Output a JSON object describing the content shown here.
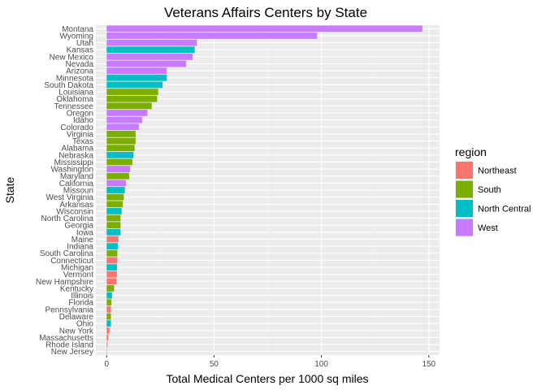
{
  "chart_data": {
    "type": "bar",
    "orientation": "horizontal",
    "title": "Veterans Affairs Centers by State",
    "xlabel": "Total Medical Centers per 1000 sq miles",
    "ylabel": "State",
    "xlim": [
      -5,
      155
    ],
    "xticks": [
      0,
      50,
      100,
      150
    ],
    "grid": true,
    "legend": {
      "title": "region",
      "position": "right",
      "entries": [
        {
          "name": "Northeast",
          "color": "#F8766D"
        },
        {
          "name": "South",
          "color": "#7CAE00"
        },
        {
          "name": "North Central",
          "color": "#00BFC4"
        },
        {
          "name": "West",
          "color": "#C77CFF"
        }
      ]
    },
    "bars": [
      {
        "state": "Montana",
        "value": 147,
        "region": "West"
      },
      {
        "state": "Wyoming",
        "value": 98,
        "region": "West"
      },
      {
        "state": "Utah",
        "value": 42,
        "region": "West"
      },
      {
        "state": "Kansas",
        "value": 41,
        "region": "North Central"
      },
      {
        "state": "New Mexico",
        "value": 40,
        "region": "West"
      },
      {
        "state": "Nevada",
        "value": 37,
        "region": "West"
      },
      {
        "state": "Arizona",
        "value": 28,
        "region": "West"
      },
      {
        "state": "Minnesota",
        "value": 28,
        "region": "North Central"
      },
      {
        "state": "South Dakota",
        "value": 26,
        "region": "North Central"
      },
      {
        "state": "Louisiana",
        "value": 24,
        "region": "South"
      },
      {
        "state": "Oklahoma",
        "value": 23.5,
        "region": "South"
      },
      {
        "state": "Tennessee",
        "value": 21,
        "region": "South"
      },
      {
        "state": "Oregon",
        "value": 19,
        "region": "West"
      },
      {
        "state": "Idaho",
        "value": 16.5,
        "region": "West"
      },
      {
        "state": "Colorado",
        "value": 15,
        "region": "West"
      },
      {
        "state": "Virginia",
        "value": 13.5,
        "region": "South"
      },
      {
        "state": "Texas",
        "value": 13.5,
        "region": "South"
      },
      {
        "state": "Alabama",
        "value": 13,
        "region": "South"
      },
      {
        "state": "Nebraska",
        "value": 12.5,
        "region": "North Central"
      },
      {
        "state": "Mississippi",
        "value": 12,
        "region": "South"
      },
      {
        "state": "Washington",
        "value": 11,
        "region": "West"
      },
      {
        "state": "Maryland",
        "value": 10.5,
        "region": "South"
      },
      {
        "state": "California",
        "value": 9,
        "region": "West"
      },
      {
        "state": "Missouri",
        "value": 8.5,
        "region": "North Central"
      },
      {
        "state": "West Virginia",
        "value": 8,
        "region": "South"
      },
      {
        "state": "Arkansas",
        "value": 7.5,
        "region": "South"
      },
      {
        "state": "Wisconsin",
        "value": 7,
        "region": "North Central"
      },
      {
        "state": "North Carolina",
        "value": 6.5,
        "region": "South"
      },
      {
        "state": "Georgia",
        "value": 6.5,
        "region": "South"
      },
      {
        "state": "Iowa",
        "value": 6.5,
        "region": "North Central"
      },
      {
        "state": "Maine",
        "value": 5.5,
        "region": "Northeast"
      },
      {
        "state": "Indiana",
        "value": 5.2,
        "region": "North Central"
      },
      {
        "state": "South Carolina",
        "value": 5,
        "region": "South"
      },
      {
        "state": "Connecticut",
        "value": 5,
        "region": "Northeast"
      },
      {
        "state": "Michigan",
        "value": 4.8,
        "region": "North Central"
      },
      {
        "state": "Vermont",
        "value": 4.8,
        "region": "Northeast"
      },
      {
        "state": "New Hampshire",
        "value": 4.6,
        "region": "Northeast"
      },
      {
        "state": "Kentucky",
        "value": 3.5,
        "region": "South"
      },
      {
        "state": "Illinois",
        "value": 2.5,
        "region": "North Central"
      },
      {
        "state": "Florida",
        "value": 2.2,
        "region": "South"
      },
      {
        "state": "Pennsylvania",
        "value": 2,
        "region": "Northeast"
      },
      {
        "state": "Delaware",
        "value": 2,
        "region": "South"
      },
      {
        "state": "Ohio",
        "value": 2,
        "region": "North Central"
      },
      {
        "state": "New York",
        "value": 1.3,
        "region": "Northeast"
      },
      {
        "state": "Massachusetts",
        "value": 0.8,
        "region": "Northeast"
      },
      {
        "state": "Rhode Island",
        "value": 0.4,
        "region": "Northeast"
      },
      {
        "state": "New Jersey",
        "value": 0.2,
        "region": "Northeast"
      }
    ]
  }
}
